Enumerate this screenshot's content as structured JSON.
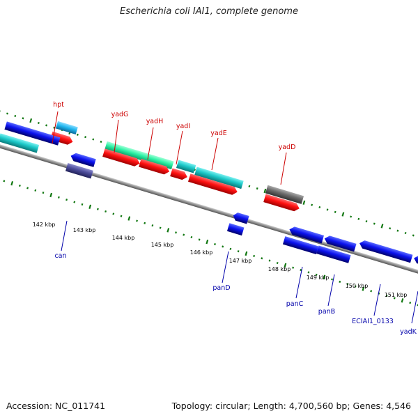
{
  "title": "Escherichia coli IAI1, complete genome",
  "footer": {
    "accession": "Accession: NC_011741",
    "summary": "Topology: circular; Length: 4,700,560 bp; Genes: 4,546"
  },
  "colors": {
    "label_forward": "#cc0000",
    "label_reverse": "#0000aa",
    "backbone": "#8c8c8c",
    "outer_dots": "#117711",
    "cds_red": "#ff1111",
    "cds_blue": "#0b12ee",
    "teal": "#1cc9c9",
    "mint": "#2cf2a5",
    "sky": "#22b8f0",
    "slate": "#4c4c9a",
    "gray": "#6a6a6a"
  },
  "scale": {
    "ticks": [
      {
        "label": "142 kbp"
      },
      {
        "label": "143 kbp"
      },
      {
        "label": "144 kbp"
      },
      {
        "label": "145 kbp"
      },
      {
        "label": "146 kbp"
      },
      {
        "label": "147 kbp"
      },
      {
        "label": "148 kbp"
      },
      {
        "label": "149 kbp"
      },
      {
        "label": "150 kbp"
      },
      {
        "label": "151 kbp"
      }
    ]
  },
  "gene_labels": [
    {
      "name": "hpt",
      "strand": "forward"
    },
    {
      "name": "yadG",
      "strand": "forward"
    },
    {
      "name": "yadH",
      "strand": "forward"
    },
    {
      "name": "yadI",
      "strand": "forward"
    },
    {
      "name": "yadE",
      "strand": "forward"
    },
    {
      "name": "yadD",
      "strand": "forward"
    },
    {
      "name": "can",
      "strand": "reverse"
    },
    {
      "name": "panD",
      "strand": "reverse"
    },
    {
      "name": "panC",
      "strand": "reverse"
    },
    {
      "name": "panB",
      "strand": "reverse"
    },
    {
      "name": "ECIAI1_0133",
      "strand": "reverse"
    },
    {
      "name": "yadK",
      "strand": "reverse"
    }
  ]
}
